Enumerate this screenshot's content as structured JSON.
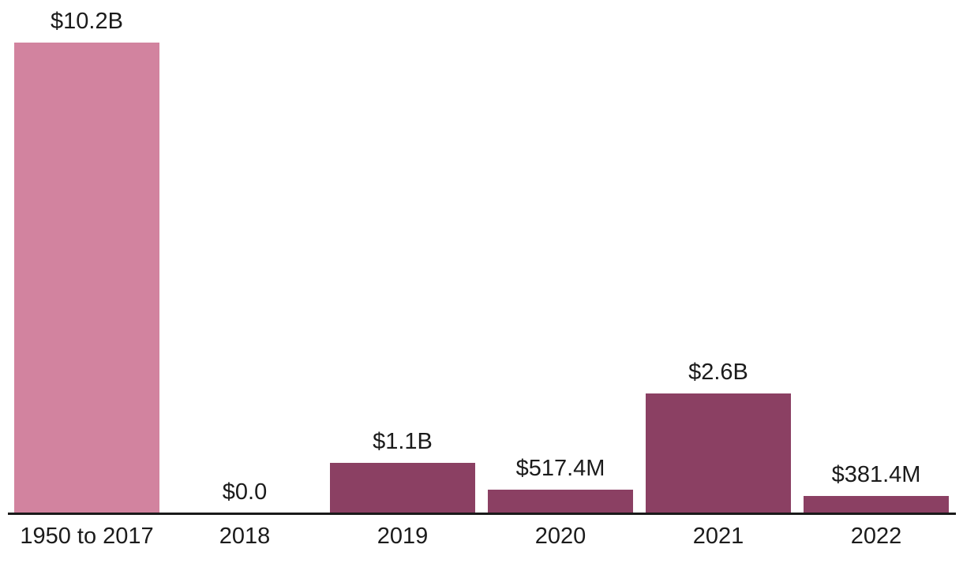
{
  "chart_data": {
    "type": "bar",
    "title": "",
    "xlabel": "",
    "ylabel": "",
    "categories": [
      "1950 to 2017",
      "2018",
      "2019",
      "2020",
      "2021",
      "2022"
    ],
    "values_billions": [
      10.2,
      0.0,
      1.1,
      0.5174,
      2.6,
      0.3814
    ],
    "value_labels": [
      "$10.2B",
      "$0.0",
      "$1.1B",
      "$517.4M",
      "$2.6B",
      "$381.4M"
    ],
    "bar_colors": [
      "#d2839f",
      "#8b4063",
      "#8b4063",
      "#8b4063",
      "#8b4063",
      "#8b4063"
    ],
    "highlight_color": "#d2839f",
    "default_bar_color": "#8b4063",
    "axis_line_color": "#1a1a1a",
    "label_color": "#1b1b1b",
    "background_color": "#ffffff",
    "ylim": [
      0,
      10.2
    ],
    "grid": false,
    "legend_position": "none",
    "value_labels_position": "above-bars",
    "x_axis_position": "bottom"
  }
}
